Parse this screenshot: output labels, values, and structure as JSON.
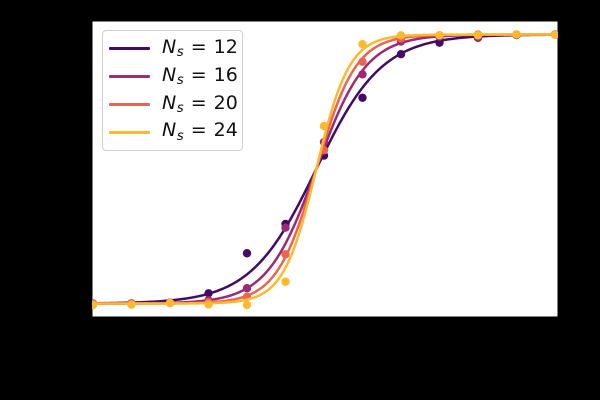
{
  "figure": {
    "background_color": "#000000",
    "plot_background_color": "#ffffff"
  },
  "legend": {
    "position": "upper-left",
    "entries": [
      {
        "var": "N",
        "sub": "s",
        "eq": " = ",
        "value": "12",
        "label": "Ns = 12"
      },
      {
        "var": "N",
        "sub": "s",
        "eq": " = ",
        "value": "16",
        "label": "Ns = 16"
      },
      {
        "var": "N",
        "sub": "s",
        "eq": " = ",
        "value": "20",
        "label": "Ns = 20"
      },
      {
        "var": "N",
        "sub": "s",
        "eq": " = ",
        "value": "24",
        "label": "Ns = 24"
      }
    ]
  },
  "chart_data": {
    "type": "line+scatter",
    "title": "",
    "xlabel": "",
    "ylabel": "",
    "xlim": [
      -6.05,
      6.08
    ],
    "ylim": [
      -0.05,
      1.05
    ],
    "grid": false,
    "tick_labels_visible": false,
    "model": "logistic: y = 1 / (1 + exp(-k*(x - x0)))",
    "x": [
      -6,
      -5,
      -4,
      -3,
      -2,
      -1,
      0,
      1,
      2,
      3,
      4,
      5,
      6
    ],
    "series": [
      {
        "name": "Ns = 12",
        "color": "#440a68",
        "k": 1.17,
        "x0": -0.2,
        "scatter_y": [
          0.0,
          0.0,
          0.003,
          0.038,
          0.187,
          0.296,
          0.55,
          0.765,
          0.927,
          0.97,
          0.988,
          0.998,
          1.0
        ]
      },
      {
        "name": "Ns = 16",
        "color": "#9c2b72",
        "k": 1.56,
        "x0": -0.2,
        "scatter_y": [
          0.0,
          0.001,
          0.003,
          0.012,
          0.057,
          0.282,
          0.6,
          0.852,
          0.974,
          0.992,
          0.988,
          1.0,
          1.0
        ]
      },
      {
        "name": "Ns = 20",
        "color": "#ed6351",
        "k": 1.95,
        "x0": -0.2,
        "scatter_y": [
          0.0,
          0.0,
          0.002,
          0.005,
          0.025,
          0.183,
          0.57,
          0.899,
          0.985,
          0.997,
          1.0,
          1.0,
          1.0
        ]
      },
      {
        "name": "Ns = 24",
        "color": "#fdb92c",
        "k": 2.34,
        "x0": -0.2,
        "scatter_y": [
          -0.005,
          -0.004,
          0.002,
          -0.003,
          -0.005,
          0.081,
          0.66,
          0.964,
          0.997,
          0.997,
          0.997,
          1.0,
          0.999
        ]
      }
    ]
  }
}
